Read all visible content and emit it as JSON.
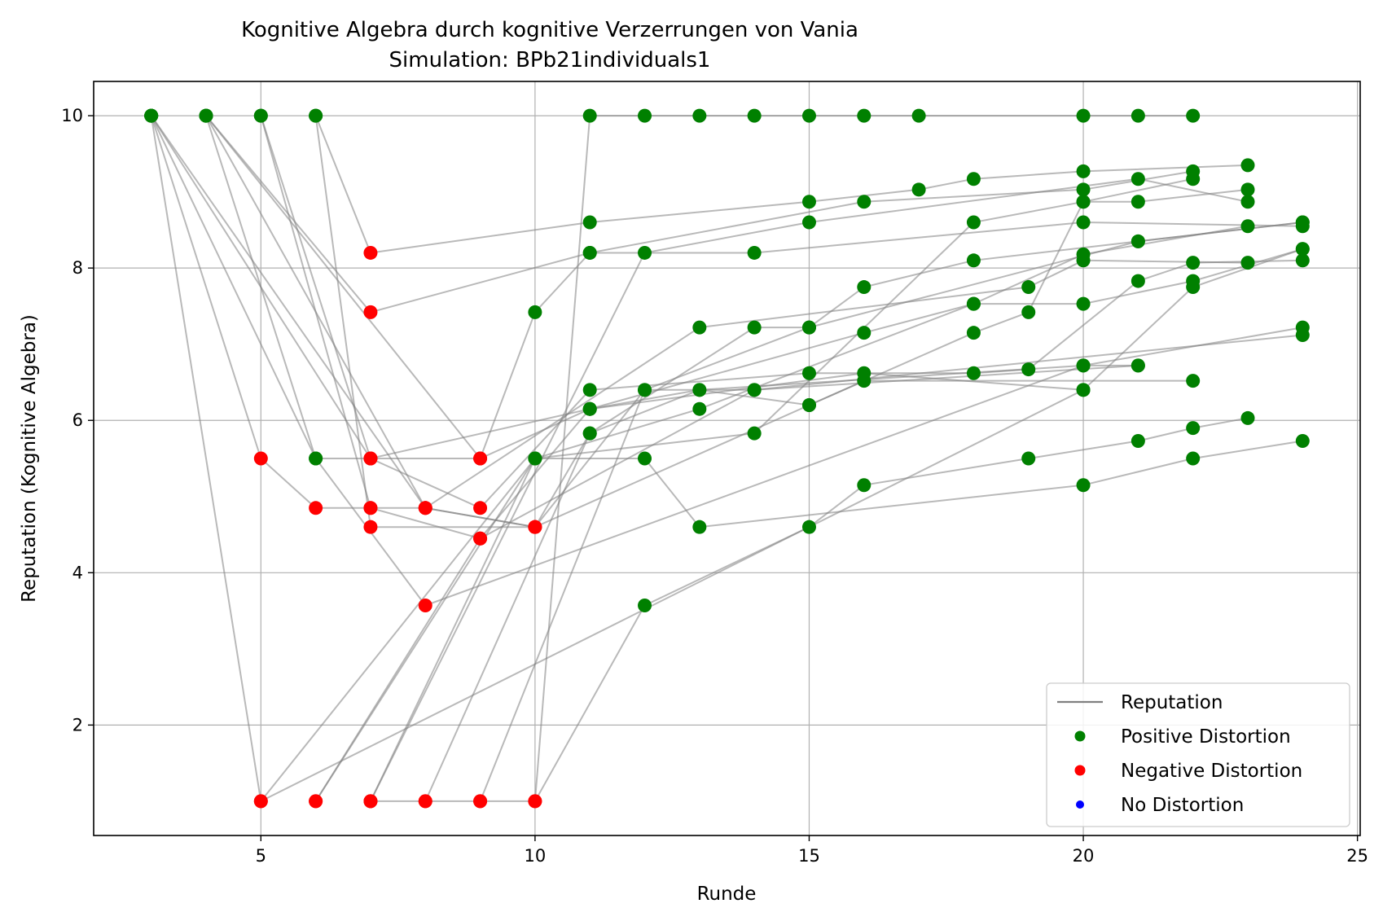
{
  "chart_data": {
    "type": "line",
    "title": "Kognitive Algebra durch kognitive Verzerrungen von Vania",
    "subtitle": "Simulation: BPb21individuals1",
    "xlabel": "Runde",
    "ylabel": "Reputation (Kognitive Algebra)",
    "xlim": [
      1.95,
      25.05
    ],
    "ylim": [
      0.55,
      10.45
    ],
    "xticks": [
      5,
      10,
      15,
      20,
      25
    ],
    "yticks": [
      2,
      4,
      6,
      8,
      10
    ],
    "grid": true,
    "legend_position": "lower-right",
    "colors": {
      "line": "#808080",
      "positive": "#008000",
      "negative": "#ff0000",
      "none": "#0000ff"
    },
    "legend": [
      {
        "label": "Reputation",
        "kind": "line",
        "color": "#808080"
      },
      {
        "label": "Positive Distortion",
        "kind": "dot",
        "color": "#008000"
      },
      {
        "label": "Negative Distortion",
        "kind": "dot",
        "color": "#ff0000"
      },
      {
        "label": "No Distortion",
        "kind": "dot",
        "color": "#0000ff"
      }
    ],
    "series": [
      {
        "points": [
          [
            3,
            10,
            "pos"
          ],
          [
            5,
            1,
            "neg"
          ],
          [
            20,
            6.4,
            "pos"
          ],
          [
            22,
            7.75,
            "pos"
          ],
          [
            24,
            8.25,
            "pos"
          ]
        ]
      },
      {
        "points": [
          [
            3,
            10,
            "pos"
          ],
          [
            5,
            5.5,
            "neg"
          ],
          [
            6,
            4.85,
            "neg"
          ],
          [
            7,
            4.85,
            "neg"
          ],
          [
            9,
            4.45,
            "neg"
          ],
          [
            14,
            6.4,
            "pos"
          ],
          [
            21,
            6.72,
            "pos"
          ]
        ]
      },
      {
        "points": [
          [
            3,
            10,
            "pos"
          ],
          [
            6,
            5.5,
            "pos"
          ],
          [
            8,
            3.57,
            "neg"
          ],
          [
            20,
            6.72,
            "pos"
          ],
          [
            24,
            7.22,
            "pos"
          ]
        ]
      },
      {
        "points": [
          [
            3,
            10,
            "pos"
          ],
          [
            7,
            5.5,
            "neg"
          ],
          [
            9,
            5.5,
            "neg"
          ],
          [
            11,
            6.15,
            "pos"
          ],
          [
            16,
            7.15,
            "pos"
          ],
          [
            18,
            7.53,
            "pos"
          ],
          [
            20,
            8.18,
            "pos"
          ],
          [
            23,
            8.55,
            "pos"
          ]
        ]
      },
      {
        "points": [
          [
            3,
            10,
            "pos"
          ],
          [
            8,
            4.85,
            "neg"
          ],
          [
            10,
            4.6,
            "neg"
          ],
          [
            12,
            6.4,
            "pos"
          ],
          [
            15,
            7.22,
            "pos"
          ],
          [
            16,
            7.75,
            "pos"
          ],
          [
            18,
            8.1,
            "pos"
          ],
          [
            21,
            8.35,
            "pos"
          ],
          [
            24,
            8.6,
            "pos"
          ]
        ]
      },
      {
        "points": [
          [
            4,
            10,
            "pos"
          ],
          [
            6,
            5.5,
            "pos"
          ],
          [
            7,
            5.5,
            "neg"
          ],
          [
            9,
            4.85,
            "neg"
          ],
          [
            11,
            6.4,
            "pos"
          ],
          [
            15,
            6.62,
            "pos"
          ],
          [
            18,
            6.62,
            "pos"
          ],
          [
            19,
            6.67,
            "pos"
          ],
          [
            21,
            7.83,
            "pos"
          ],
          [
            22,
            8.07,
            "pos"
          ],
          [
            24,
            8.1,
            "pos"
          ]
        ]
      },
      {
        "points": [
          [
            4,
            10,
            "pos"
          ],
          [
            7,
            7.42,
            "neg"
          ],
          [
            11,
            8.2,
            "pos"
          ],
          [
            14,
            8.2,
            "pos"
          ],
          [
            20,
            8.6,
            "pos"
          ],
          [
            24,
            8.55,
            "pos"
          ]
        ]
      },
      {
        "points": [
          [
            4,
            10,
            "pos"
          ],
          [
            9,
            5.5,
            "neg"
          ],
          [
            10,
            7.42,
            "pos"
          ],
          [
            11,
            8.2,
            "pos"
          ],
          [
            16,
            8.87,
            "pos"
          ],
          [
            20,
            9.03,
            "pos"
          ],
          [
            22,
            9.27,
            "pos"
          ]
        ]
      },
      {
        "points": [
          [
            4,
            10,
            "pos"
          ],
          [
            8,
            4.85,
            "neg"
          ],
          [
            10,
            4.6,
            "neg"
          ],
          [
            11,
            5.83,
            "pos"
          ],
          [
            13,
            6.4,
            "pos"
          ],
          [
            15,
            6.2,
            "pos"
          ],
          [
            16,
            6.52,
            "pos"
          ],
          [
            22,
            6.52,
            "pos"
          ]
        ]
      },
      {
        "points": [
          [
            5,
            10,
            "pos"
          ],
          [
            7,
            5.5,
            "neg"
          ],
          [
            11,
            6.15,
            "pos"
          ],
          [
            16,
            6.62,
            "pos"
          ],
          [
            20,
            6.4,
            "pos"
          ]
        ]
      },
      {
        "points": [
          [
            5,
            10,
            "pos"
          ],
          [
            7,
            4.85,
            "neg"
          ],
          [
            8,
            4.85,
            "neg"
          ],
          [
            13,
            7.22,
            "pos"
          ],
          [
            19,
            7.75,
            "pos"
          ],
          [
            20,
            8.1,
            "pos"
          ],
          [
            23,
            8.07,
            "pos"
          ]
        ]
      },
      {
        "points": [
          [
            6,
            10,
            "pos"
          ],
          [
            7,
            8.2,
            "neg"
          ],
          [
            11,
            8.6,
            "pos"
          ],
          [
            15,
            8.87,
            "pos"
          ],
          [
            17,
            9.03,
            "pos"
          ],
          [
            18,
            9.17,
            "pos"
          ],
          [
            20,
            9.27,
            "pos"
          ],
          [
            23,
            9.35,
            "pos"
          ]
        ]
      },
      {
        "points": [
          [
            6,
            10,
            "pos"
          ],
          [
            7,
            4.6,
            "neg"
          ],
          [
            10,
            4.6,
            "neg"
          ],
          [
            15,
            6.2,
            "pos"
          ],
          [
            18,
            7.15,
            "pos"
          ],
          [
            19,
            7.42,
            "pos"
          ],
          [
            20,
            8.87,
            "pos"
          ],
          [
            21,
            8.87,
            "pos"
          ],
          [
            23,
            9.03,
            "pos"
          ]
        ]
      },
      {
        "points": [
          [
            5,
            1,
            "neg"
          ],
          [
            10,
            5.5,
            "pos"
          ],
          [
            13,
            6.15,
            "pos"
          ],
          [
            18,
            7.53,
            "pos"
          ],
          [
            20,
            7.53,
            "pos"
          ],
          [
            22,
            7.83,
            "pos"
          ],
          [
            24,
            8.25,
            "pos"
          ]
        ]
      },
      {
        "points": [
          [
            6,
            1,
            "neg"
          ],
          [
            9,
            4.45,
            "neg"
          ],
          [
            11,
            6.15,
            "pos"
          ],
          [
            13,
            6.4,
            "pos"
          ],
          [
            20,
            6.72,
            "pos"
          ],
          [
            21,
            6.72,
            "pos"
          ]
        ]
      },
      {
        "points": [
          [
            6,
            1,
            "neg"
          ],
          [
            10,
            5.5,
            "pos"
          ],
          [
            14,
            5.83,
            "pos"
          ],
          [
            18,
            8.6,
            "pos"
          ],
          [
            20,
            8.87,
            "pos"
          ],
          [
            22,
            9.17,
            "pos"
          ]
        ]
      },
      {
        "points": [
          [
            7,
            1,
            "neg"
          ],
          [
            8,
            1,
            "neg"
          ],
          [
            9,
            1,
            "neg"
          ],
          [
            10,
            1,
            "neg"
          ],
          [
            12,
            3.57,
            "pos"
          ],
          [
            15,
            4.6,
            "pos"
          ],
          [
            16,
            5.15,
            "pos"
          ],
          [
            19,
            5.5,
            "pos"
          ],
          [
            21,
            5.73,
            "pos"
          ],
          [
            22,
            5.9,
            "pos"
          ],
          [
            23,
            6.03,
            "pos"
          ]
        ]
      },
      {
        "points": [
          [
            7,
            1,
            "neg"
          ],
          [
            10,
            5.5,
            "pos"
          ],
          [
            12,
            5.5,
            "pos"
          ],
          [
            13,
            4.6,
            "pos"
          ],
          [
            20,
            5.15,
            "pos"
          ],
          [
            22,
            5.5,
            "pos"
          ],
          [
            24,
            5.73,
            "pos"
          ]
        ]
      },
      {
        "points": [
          [
            8,
            1,
            "neg"
          ],
          [
            11,
            5.83,
            "pos"
          ],
          [
            14,
            7.22,
            "pos"
          ],
          [
            15,
            7.22,
            "pos"
          ],
          [
            21,
            8.35,
            "pos"
          ],
          [
            24,
            8.6,
            "pos"
          ]
        ]
      },
      {
        "points": [
          [
            9,
            1,
            "neg"
          ],
          [
            12,
            6.4,
            "pos"
          ],
          [
            14,
            6.4,
            "pos"
          ],
          [
            24,
            7.12,
            "pos"
          ]
        ]
      },
      {
        "points": [
          [
            10,
            1,
            "neg"
          ],
          [
            11,
            10,
            "pos"
          ],
          [
            12,
            10,
            "pos"
          ],
          [
            13,
            10,
            "pos"
          ],
          [
            14,
            10,
            "pos"
          ],
          [
            15,
            10,
            "pos"
          ],
          [
            16,
            10,
            "pos"
          ],
          [
            17,
            10,
            "pos"
          ],
          [
            20,
            10,
            "pos"
          ],
          [
            21,
            10,
            "pos"
          ],
          [
            22,
            10,
            "pos"
          ]
        ]
      },
      {
        "points": [
          [
            7,
            1,
            "neg"
          ],
          [
            12,
            8.2,
            "pos"
          ],
          [
            15,
            8.6,
            "pos"
          ],
          [
            21,
            9.17,
            "pos"
          ],
          [
            23,
            8.87,
            "pos"
          ]
        ]
      }
    ]
  }
}
